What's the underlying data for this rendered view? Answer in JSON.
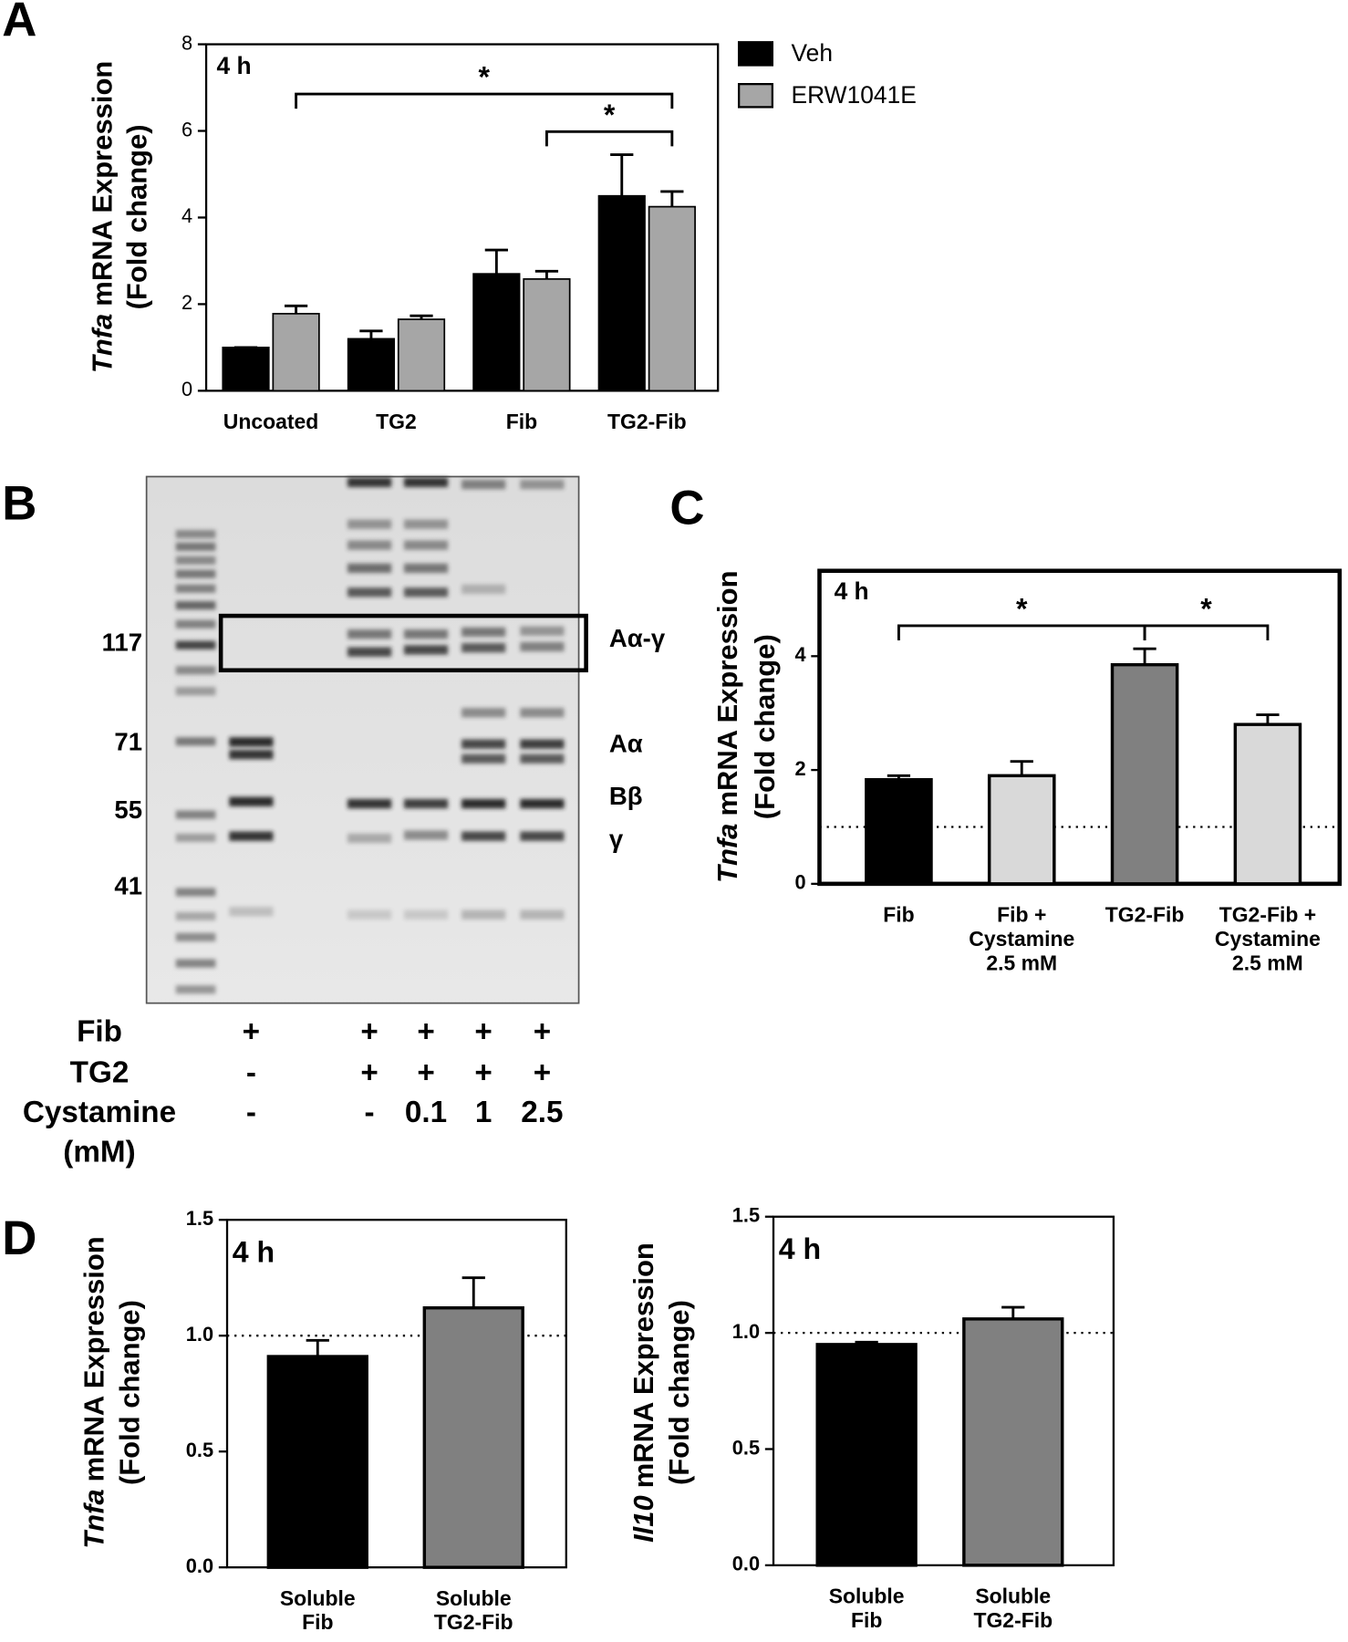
{
  "chart_data": [
    {
      "type": "bar",
      "panel": "A",
      "annotation": "4 h",
      "y_label_gene": "Tnfa",
      "y_label": "mRNA Expression",
      "y_label_2": "(Fold change)",
      "categories": [
        "Uncoated",
        "TG2",
        "Fib",
        "TG2-Fib"
      ],
      "series": [
        {
          "name": "Veh",
          "color": "#000000",
          "values": [
            1.0,
            1.2,
            2.7,
            4.5
          ],
          "errors": [
            0,
            0.18,
            0.55,
            0.95
          ]
        },
        {
          "name": "ERW1041E",
          "color": "#a6a6a6",
          "values": [
            1.78,
            1.65,
            2.58,
            4.25
          ],
          "errors": [
            0.18,
            0.08,
            0.18,
            0.35
          ]
        }
      ],
      "ylim": [
        0,
        8
      ],
      "yticks": [
        0,
        2,
        4,
        6,
        8
      ],
      "significance": [
        {
          "label": "*",
          "between": [
            "Uncoated",
            "TG2-Fib"
          ]
        },
        {
          "label": "*",
          "between": [
            "Fib",
            "TG2-Fib"
          ]
        }
      ]
    },
    {
      "type": "bar",
      "panel": "C",
      "annotation": "4 h",
      "y_label_gene": "Tnfa",
      "y_label": "mRNA Expression",
      "y_label_2": "(Fold change)",
      "categories": [
        [
          "Fib"
        ],
        [
          "Fib +",
          "Cystamine",
          "2.5 mM"
        ],
        [
          "TG2-Fib"
        ],
        [
          "TG2-Fib +",
          "Cystamine",
          "2.5 mM"
        ]
      ],
      "values": [
        1.83,
        1.9,
        3.85,
        2.8
      ],
      "errors": [
        0.07,
        0.25,
        0.28,
        0.17
      ],
      "colors": [
        "#000000",
        "#d9d9d9",
        "#808080",
        "#d9d9d9"
      ],
      "ylim": [
        0,
        5.5
      ],
      "yticks": [
        0,
        2,
        4
      ],
      "reference_line": 1,
      "significance": [
        {
          "label": "*",
          "between": [
            "Fib",
            "TG2-Fib"
          ]
        },
        {
          "label": "*",
          "between": [
            "TG2-Fib",
            "TG2-Fib +"
          ]
        }
      ]
    },
    {
      "type": "bar",
      "panel": "D",
      "annotation": "4 h",
      "y_label_gene": "Tnfa",
      "y_label": "mRNA Expression",
      "y_label_2": "(Fold change)",
      "categories": [
        [
          "Soluble",
          "Fib"
        ],
        [
          "Soluble",
          "TG2-Fib"
        ]
      ],
      "values": [
        0.91,
        1.12
      ],
      "errors": [
        0.07,
        0.13
      ],
      "colors": [
        "#000000",
        "#808080"
      ],
      "ylim": [
        0,
        1.5
      ],
      "yticks": [
        {
          "value": 0,
          "label": "0.0"
        },
        0.5,
        {
          "value": 1,
          "label": "1.0"
        },
        1.5
      ],
      "reference_line": 1
    },
    {
      "type": "bar",
      "annotation": "4 h",
      "y_label_gene": "Il10",
      "y_label": "mRNA Expression",
      "y_label_2": "(Fold change)",
      "categories": [
        [
          "Soluble",
          "Fib"
        ],
        [
          "Soluble",
          "TG2-Fib"
        ]
      ],
      "values": [
        0.95,
        1.06
      ],
      "errors": [
        0.01,
        0.05
      ],
      "colors": [
        "#000000",
        "#808080"
      ],
      "ylim": [
        0,
        1.5
      ],
      "yticks": [
        {
          "value": 0,
          "label": "0.0"
        },
        0.5,
        {
          "value": 1,
          "label": "1.0"
        },
        1.5
      ],
      "reference_line": 1
    }
  ],
  "gel": {
    "panel": "B",
    "marker_labels": [
      "117",
      "71",
      "55",
      "41"
    ],
    "band_labels": [
      "Aα-γ",
      "Aα",
      "Bβ",
      "γ"
    ],
    "conditions": [
      {
        "label": [
          "Fib"
        ],
        "lanes": [
          "+",
          "+",
          "+",
          "+",
          "+"
        ]
      },
      {
        "label": [
          "TG2"
        ],
        "lanes": [
          "-",
          "+",
          "+",
          "+",
          "+"
        ]
      },
      {
        "label": [
          "Cystamine",
          "(mM)"
        ],
        "lanes": [
          "-",
          "-",
          "0.1",
          "1",
          "2.5"
        ]
      }
    ]
  }
}
